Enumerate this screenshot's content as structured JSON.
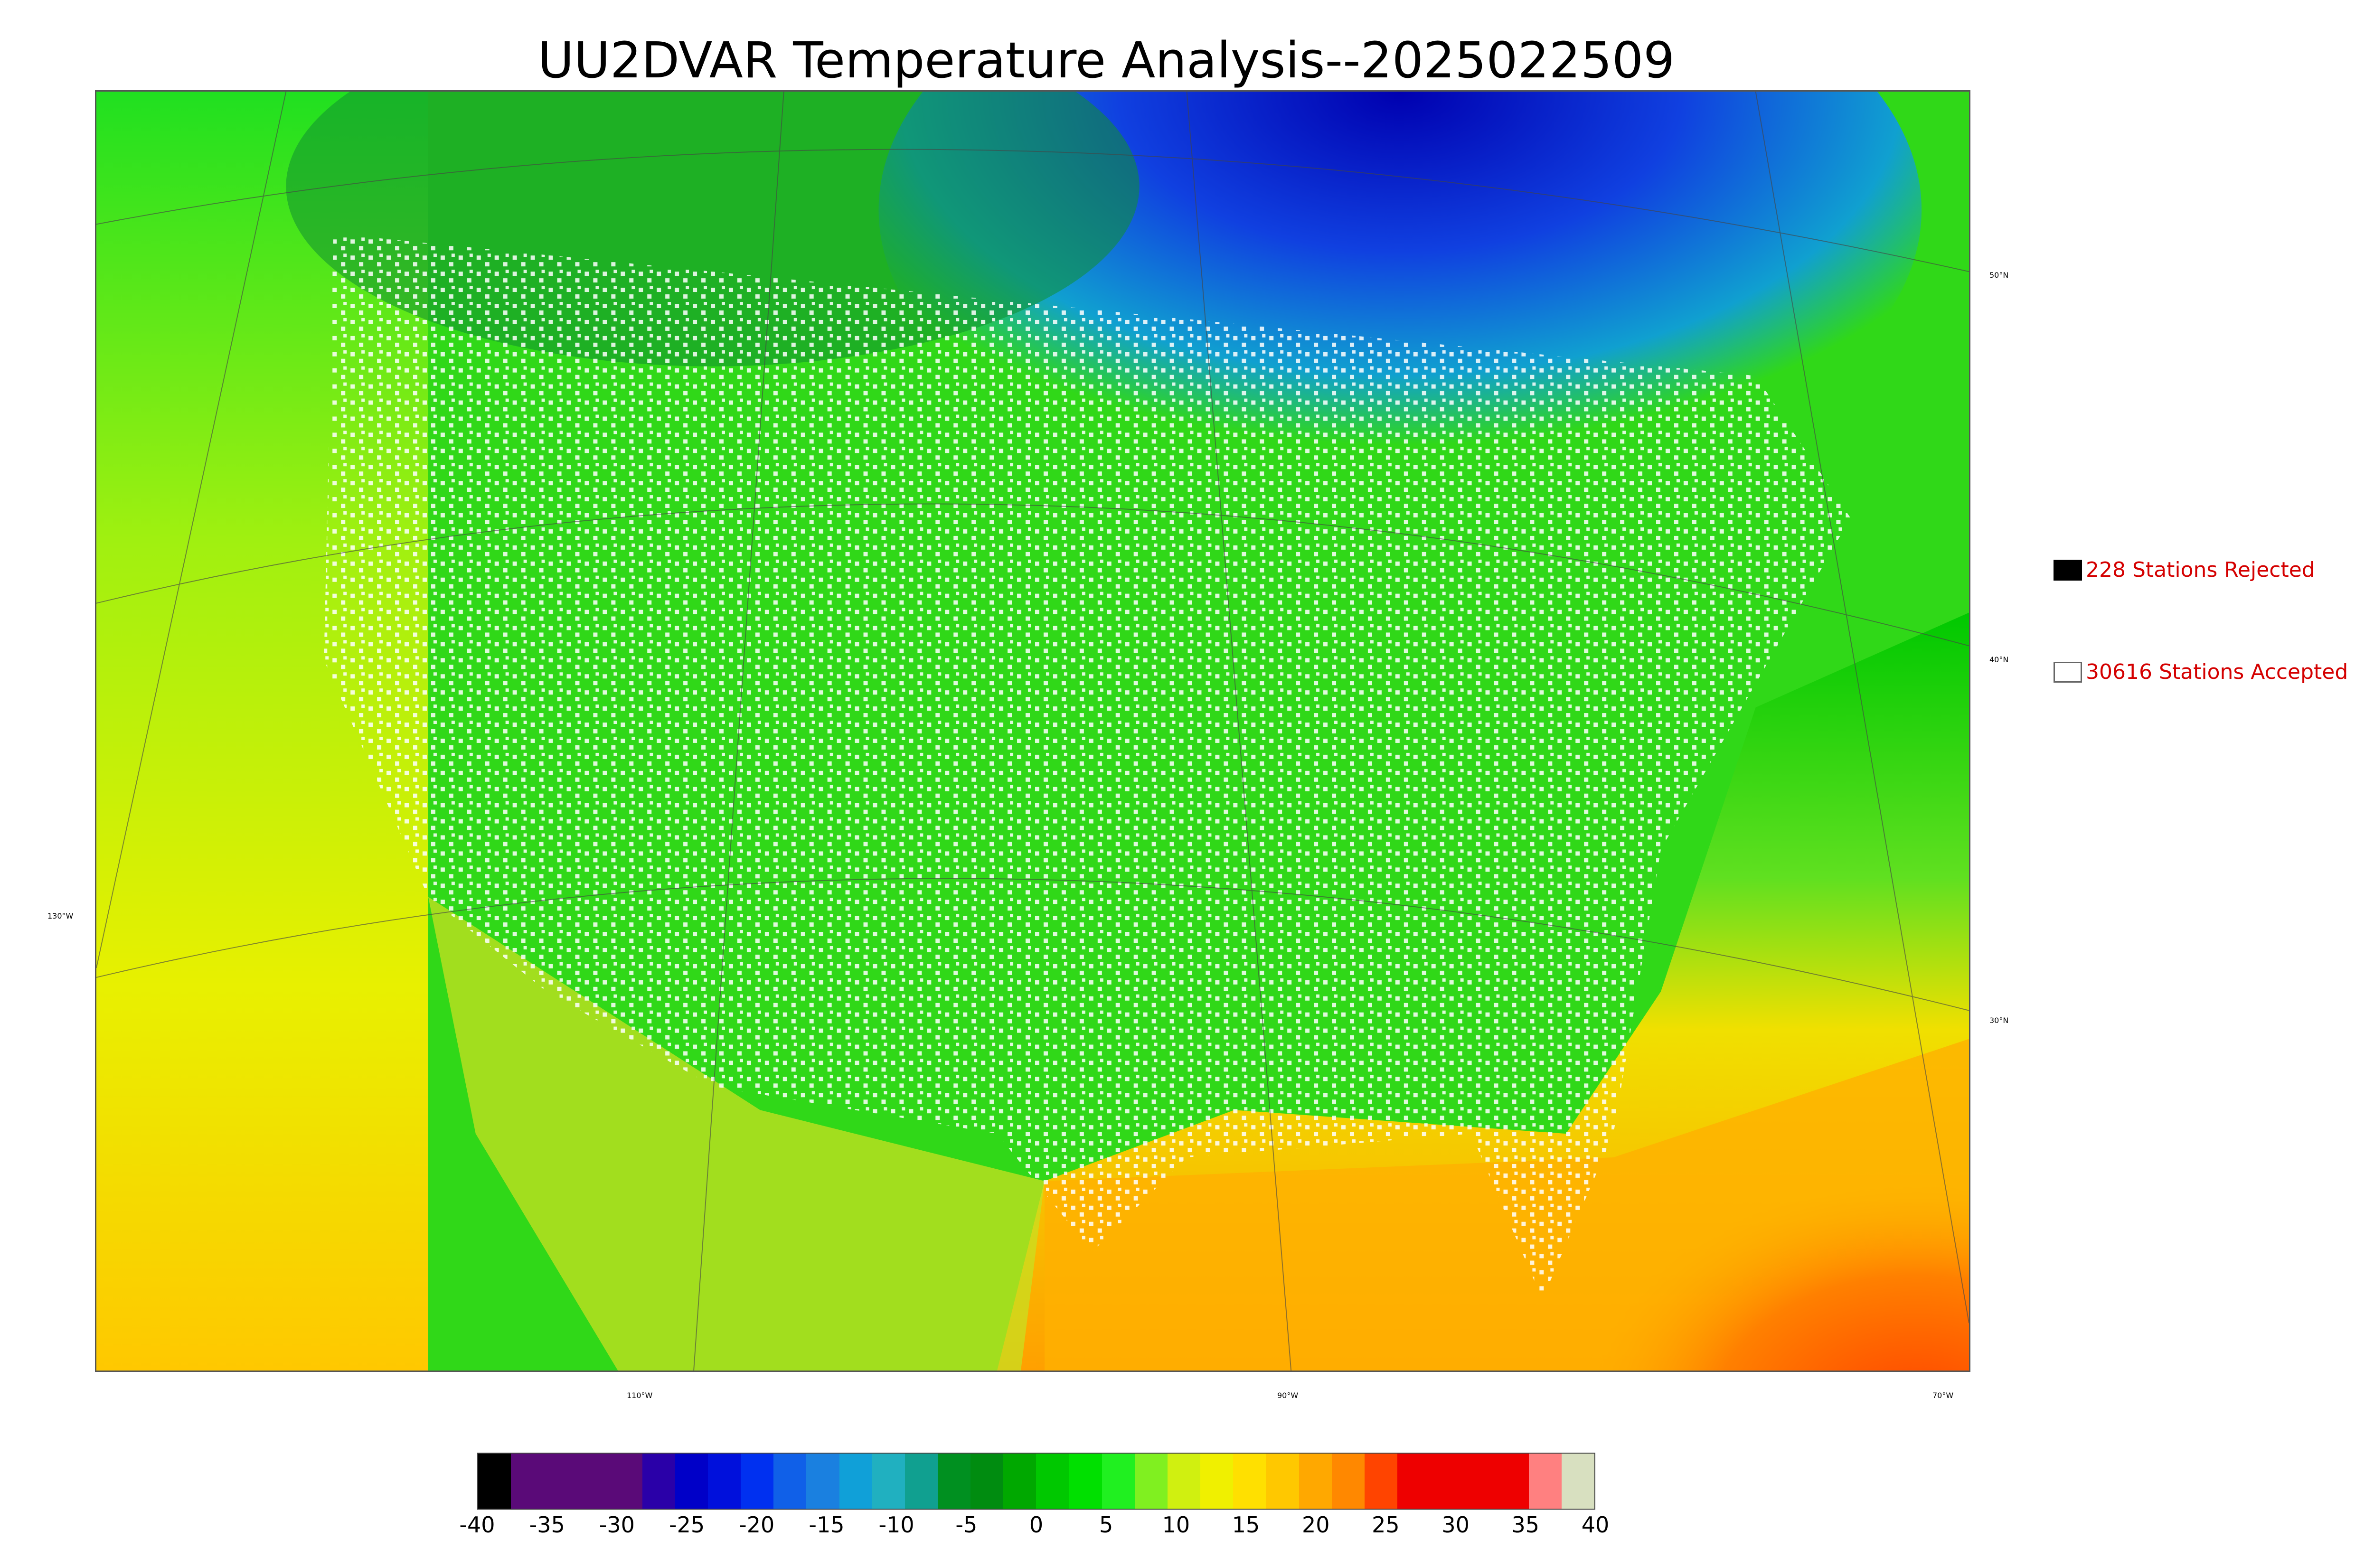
{
  "title": "UU2DVAR Temperature Analysis--2025022509",
  "map": {
    "lat_labels": [
      "50°N",
      "40°N",
      "30°N"
    ],
    "lon_labels": [
      "130°W",
      "110°W",
      "90°W",
      "70°W"
    ],
    "colors": {
      "cold_pool": "#0a10c8",
      "land": "#15d815",
      "ocean_warm": "#ffb000",
      "gulf_hot": "#ff5a00",
      "station_accepted": "#ffffff",
      "station_rejected": "#000000"
    }
  },
  "legend": {
    "rejected": {
      "label": "228 Stations Rejected",
      "icon": "black-square-icon"
    },
    "accepted": {
      "label": "30616 Stations Accepted",
      "icon": "white-square-icon"
    }
  },
  "colorbar": {
    "ticks": [
      "-40",
      "-35",
      "-30",
      "-25",
      "-20",
      "-15",
      "-10",
      "-5",
      "0",
      "5",
      "10",
      "15",
      "20",
      "25",
      "30",
      "35",
      "40"
    ],
    "colors": [
      "#000000",
      "#5a0a78",
      "#5a0a78",
      "#5a0a78",
      "#5a0a78",
      "#2a00a8",
      "#0000c8",
      "#0010dc",
      "#0030f0",
      "#1060e8",
      "#1a80e0",
      "#10a0d8",
      "#20b0c0",
      "#10a090",
      "#009020",
      "#008c10",
      "#00a800",
      "#00c800",
      "#00e000",
      "#20f020",
      "#80f020",
      "#d0f010",
      "#f0f000",
      "#ffe000",
      "#ffc800",
      "#ffa800",
      "#ff8800",
      "#ff4400",
      "#ee0000",
      "#ee0000",
      "#ee0000",
      "#ee0000",
      "#ff8080",
      "#d8e0c0"
    ]
  }
}
